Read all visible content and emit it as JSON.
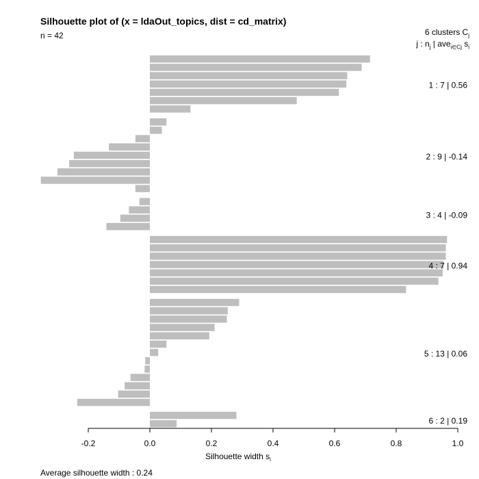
{
  "title": "Silhouette plot of (x = ldaOut_topics, dist = cd_matrix)",
  "subtitle": "n = 42",
  "legend": {
    "heading": "6  clusters  C",
    "heading_sub": "j",
    "columns": "j :  n",
    "columns_sub": "j",
    "columns_ave": " | ave",
    "columns_ave_sub": "i∈Cj",
    "columns_s": "  s",
    "columns_s_sub": "i"
  },
  "footer": "Average silhouette width :  0.24",
  "chart_data": {
    "type": "bar",
    "orientation": "horizontal",
    "title": "Silhouette plot of (x = ldaOut_topics, dist = cd_matrix)",
    "xlabel": "Silhouette width s",
    "xlabel_sub": "i",
    "xlim": [
      -0.2,
      1.0
    ],
    "xticks": [
      -0.2,
      0.0,
      0.2,
      0.4,
      0.6,
      0.8,
      1.0
    ],
    "xtick_labels": [
      "-0.2",
      "0.0",
      "0.2",
      "0.4",
      "0.6",
      "0.8",
      "1.0"
    ],
    "bar_color": "#bebebe",
    "clusters": [
      {
        "label": "1 :  7  |  0.56",
        "values": [
          0.715,
          0.688,
          0.641,
          0.638,
          0.614,
          0.477,
          0.132
        ]
      },
      {
        "label": "2 :  9  |  -0.14",
        "values": [
          0.054,
          0.039,
          -0.047,
          -0.133,
          -0.247,
          -0.262,
          -0.3,
          -0.354,
          -0.047
        ]
      },
      {
        "label": "3 :  4  |  -0.09",
        "values": [
          -0.034,
          -0.068,
          -0.096,
          -0.141
        ]
      },
      {
        "label": "4 :  7  |  0.94",
        "values": [
          0.965,
          0.961,
          0.961,
          0.954,
          0.951,
          0.937,
          0.832
        ]
      },
      {
        "label": "5 :  13  |  0.06",
        "values": [
          0.29,
          0.253,
          0.25,
          0.21,
          0.193,
          0.054,
          0.027,
          -0.015,
          -0.017,
          -0.063,
          -0.082,
          -0.103,
          -0.236
        ]
      },
      {
        "label": "6 :  2  |  0.19",
        "values": [
          0.281,
          0.087
        ]
      }
    ]
  }
}
